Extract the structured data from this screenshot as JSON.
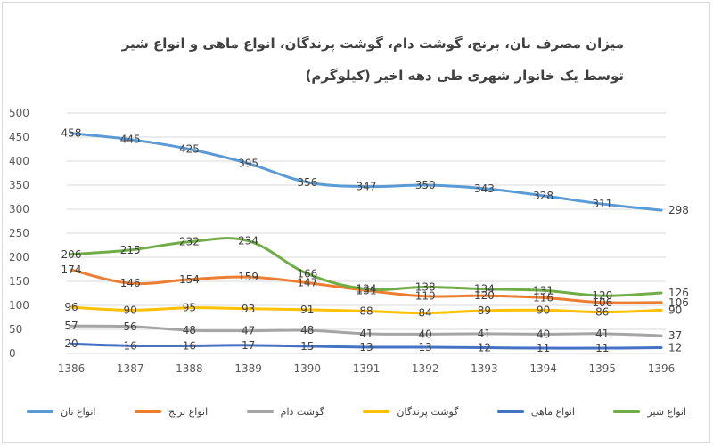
{
  "chart_data": {
    "type": "line",
    "title_line1": "میزان مصرف نان، برنج، گوشت دام، گوشت پرندگان، انواع ماهی و انواع شیر",
    "title_line2": "توسط یک خانوار شهری طی دهه اخیر (کیلوگرم)",
    "x": [
      "1386",
      "1387",
      "1388",
      "1389",
      "1390",
      "1391",
      "1392",
      "1393",
      "1394",
      "1395",
      "1396"
    ],
    "ylim": [
      0,
      500
    ],
    "yticks": [
      0,
      50,
      100,
      150,
      200,
      250,
      300,
      350,
      400,
      450,
      500
    ],
    "grid": true,
    "legend_position": "bottom",
    "series": [
      {
        "name": "انواع نان",
        "color": "#5B9BD5",
        "values": [
          458,
          445,
          425,
          395,
          356,
          347,
          350,
          343,
          328,
          311,
          298
        ]
      },
      {
        "name": "انواع برنج",
        "color": "#ED7D31",
        "values": [
          174,
          146,
          154,
          159,
          147,
          131,
          119,
          120,
          116,
          106,
          106
        ]
      },
      {
        "name": "گوشت دام",
        "color": "#A5A5A5",
        "values": [
          57,
          56,
          48,
          47,
          48,
          41,
          40,
          41,
          40,
          41,
          37
        ]
      },
      {
        "name": "گوشت پرندگان",
        "color": "#FFC000",
        "values": [
          96,
          90,
          95,
          93,
          91,
          88,
          84,
          89,
          90,
          86,
          90
        ]
      },
      {
        "name": "انواع ماهی",
        "color": "#4472C4",
        "values": [
          20,
          16,
          16,
          17,
          15,
          13,
          13,
          12,
          11,
          11,
          12
        ]
      },
      {
        "name": "انواع شیر",
        "color": "#70AD47",
        "values": [
          206,
          215,
          232,
          234,
          166,
          134,
          138,
          134,
          131,
          120,
          126
        ]
      }
    ]
  }
}
